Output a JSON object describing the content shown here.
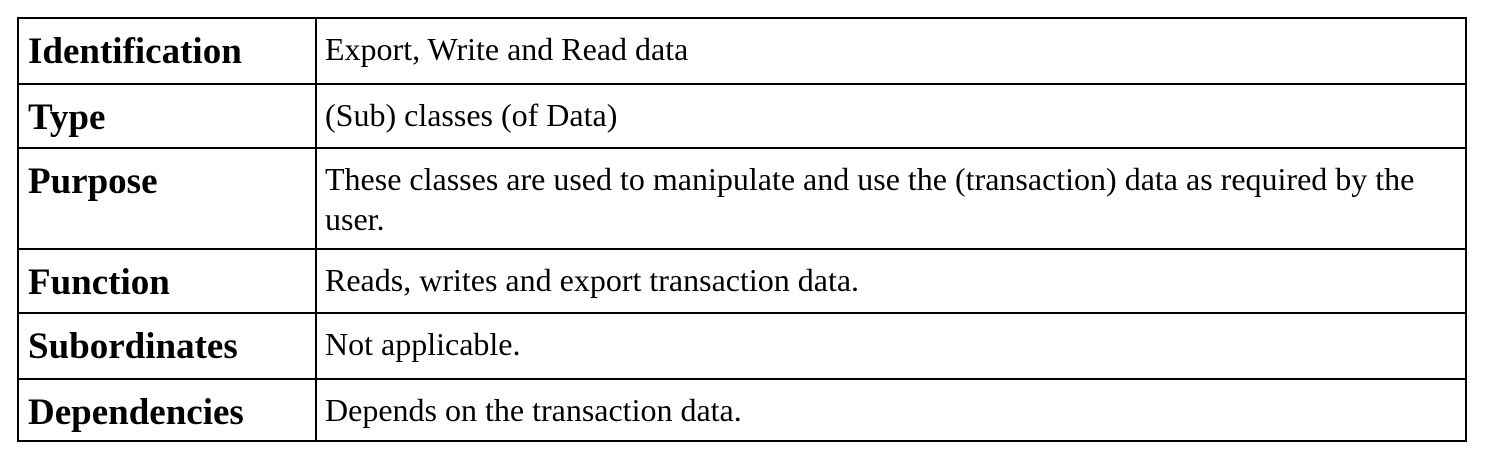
{
  "table": {
    "rows": [
      {
        "label": "Identification",
        "value": "Export, Write and Read data"
      },
      {
        "label": "Type",
        "value": "(Sub) classes (of Data)"
      },
      {
        "label": "Purpose",
        "value": "These classes are used to manipulate and use the (transaction) data as required by the user."
      },
      {
        "label": "Function",
        "value": "Reads, writes and export transaction data."
      },
      {
        "label": "Subordinates",
        "value": "Not applicable."
      },
      {
        "label": "Dependencies",
        "value": "Depends on the transaction data."
      }
    ]
  }
}
